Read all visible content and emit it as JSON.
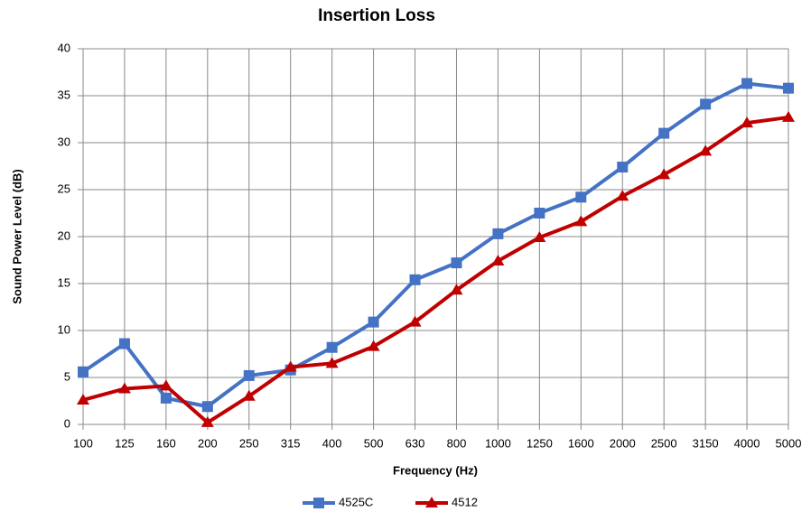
{
  "chart_data": {
    "type": "line",
    "title": "Insertion Loss",
    "x_label": "Frequency (Hz)",
    "y_label": "Sound Power Level (dB)",
    "categories": [
      "100",
      "125",
      "160",
      "200",
      "250",
      "315",
      "400",
      "500",
      "630",
      "800",
      "1000",
      "1250",
      "1600",
      "2000",
      "2500",
      "3150",
      "4000",
      "5000"
    ],
    "series": [
      {
        "name": "4525C",
        "color": "#4472c4",
        "marker": "square",
        "values": [
          5.6,
          8.6,
          2.8,
          1.9,
          5.2,
          5.8,
          8.2,
          10.9,
          15.4,
          17.2,
          20.3,
          22.5,
          24.2,
          27.4,
          31.0,
          34.1,
          36.3,
          35.8
        ]
      },
      {
        "name": "4512",
        "color": "#c00000",
        "marker": "triangle",
        "values": [
          2.6,
          3.8,
          4.1,
          0.2,
          3.0,
          6.1,
          6.5,
          8.3,
          10.9,
          14.3,
          17.4,
          19.9,
          21.6,
          24.3,
          26.6,
          29.1,
          32.1,
          32.7
        ]
      }
    ],
    "ylim": [
      0,
      40
    ],
    "yticks": [
      0,
      5,
      10,
      15,
      20,
      25,
      30,
      35,
      40
    ],
    "grid": true,
    "legend": "bottom"
  }
}
